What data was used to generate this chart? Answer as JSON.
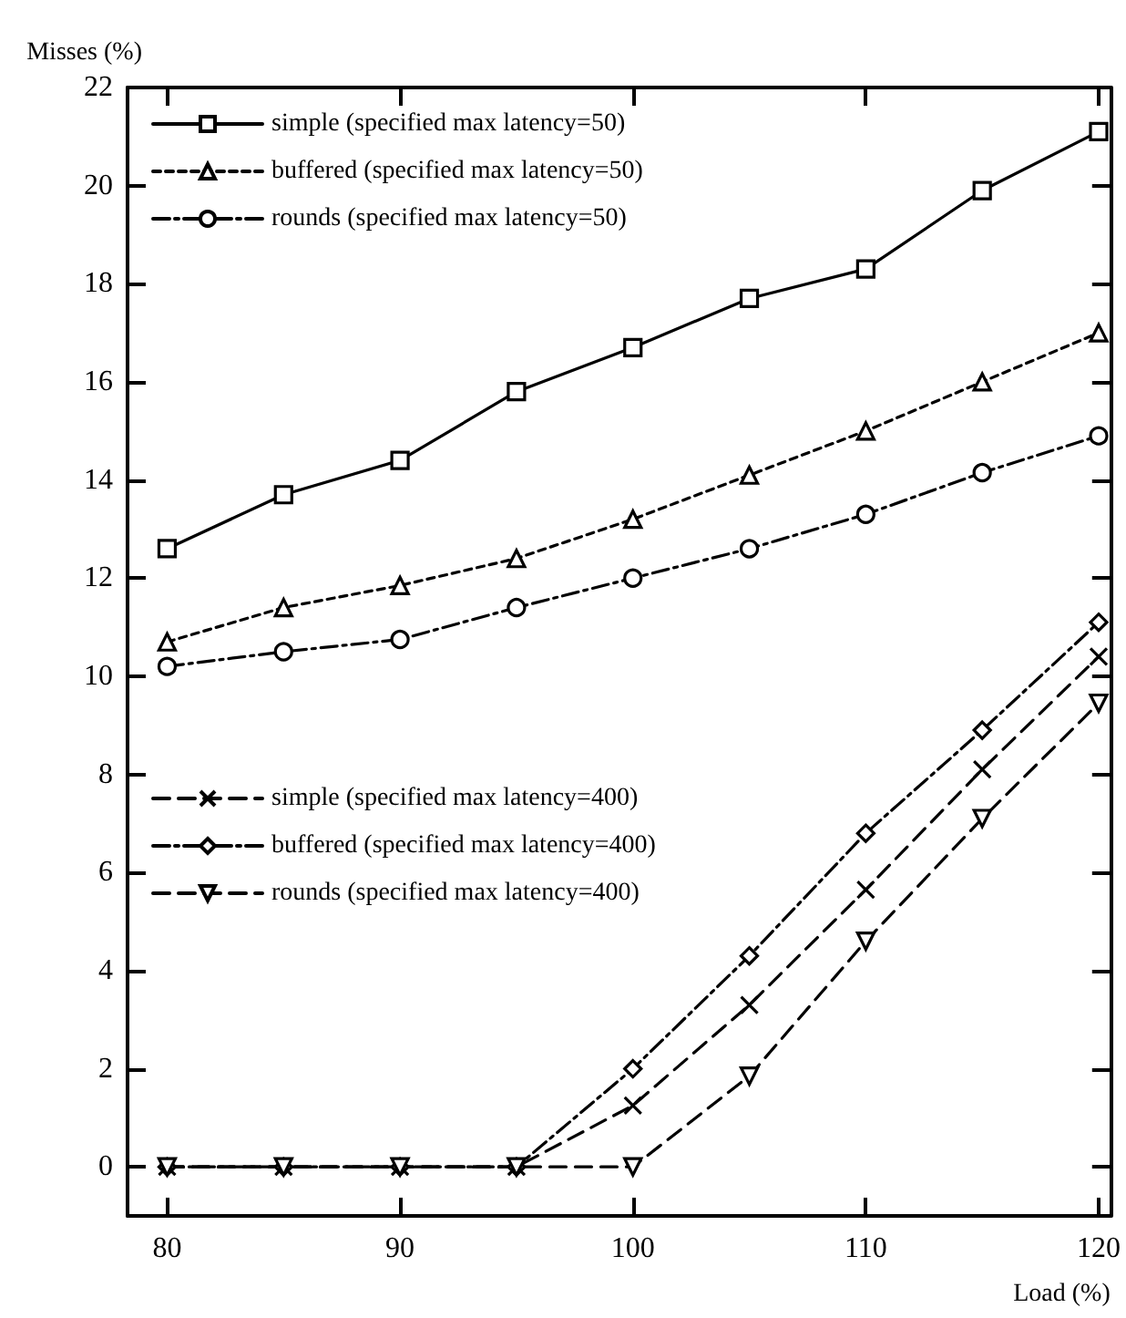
{
  "chart_data": {
    "type": "line",
    "xlabel": "Load (%)",
    "ylabel": "Misses (%)",
    "x": [
      80,
      85,
      90,
      95,
      100,
      105,
      110,
      115,
      120
    ],
    "xlim": [
      78.3,
      120.5
    ],
    "xticks": [
      80,
      90,
      100,
      110,
      120
    ],
    "ylim": [
      -1,
      22
    ],
    "yticks": [
      0,
      2,
      4,
      6,
      8,
      10,
      12,
      14,
      16,
      18,
      20,
      22
    ],
    "grid": false,
    "legend": "top left",
    "series": [
      {
        "name": "simple (specified max latency=50)",
        "color": "#000000",
        "marker": "square",
        "line_style": "solid",
        "values": [
          12.6,
          13.7,
          14.4,
          15.8,
          16.7,
          17.7,
          18.3,
          19.9,
          21.1
        ]
      },
      {
        "name": "buffered (specified max latency=50)",
        "color": "#000000",
        "marker": "triangle",
        "line_style": "dotted",
        "values": [
          10.7,
          11.4,
          11.85,
          12.4,
          13.2,
          14.1,
          15.0,
          16.0,
          17.0
        ]
      },
      {
        "name": "rounds (specified max latency=50)",
        "color": "#000000",
        "marker": "circle",
        "line_style": "dashdot",
        "values": [
          10.2,
          10.5,
          10.75,
          11.4,
          12.0,
          12.6,
          13.3,
          14.15,
          14.9
        ]
      },
      {
        "name": "simple (specified max latency=400)",
        "color": "#000000",
        "marker": "cross",
        "line_style": "dashed",
        "values": [
          0,
          0,
          0,
          0,
          1.25,
          3.3,
          5.65,
          8.1,
          10.4
        ]
      },
      {
        "name": "buffered (specified max latency=400)",
        "color": "#000000",
        "marker": "diamond",
        "line_style": "dashdot",
        "values": [
          0,
          0,
          0,
          0,
          2.0,
          4.3,
          6.8,
          8.9,
          11.1
        ]
      },
      {
        "name": "rounds (specified max latency=400)",
        "color": "#000000",
        "marker": "triangle_down",
        "line_style": "dashed",
        "values": [
          0,
          0,
          0,
          0,
          0,
          1.85,
          4.6,
          7.1,
          9.45
        ]
      }
    ]
  }
}
